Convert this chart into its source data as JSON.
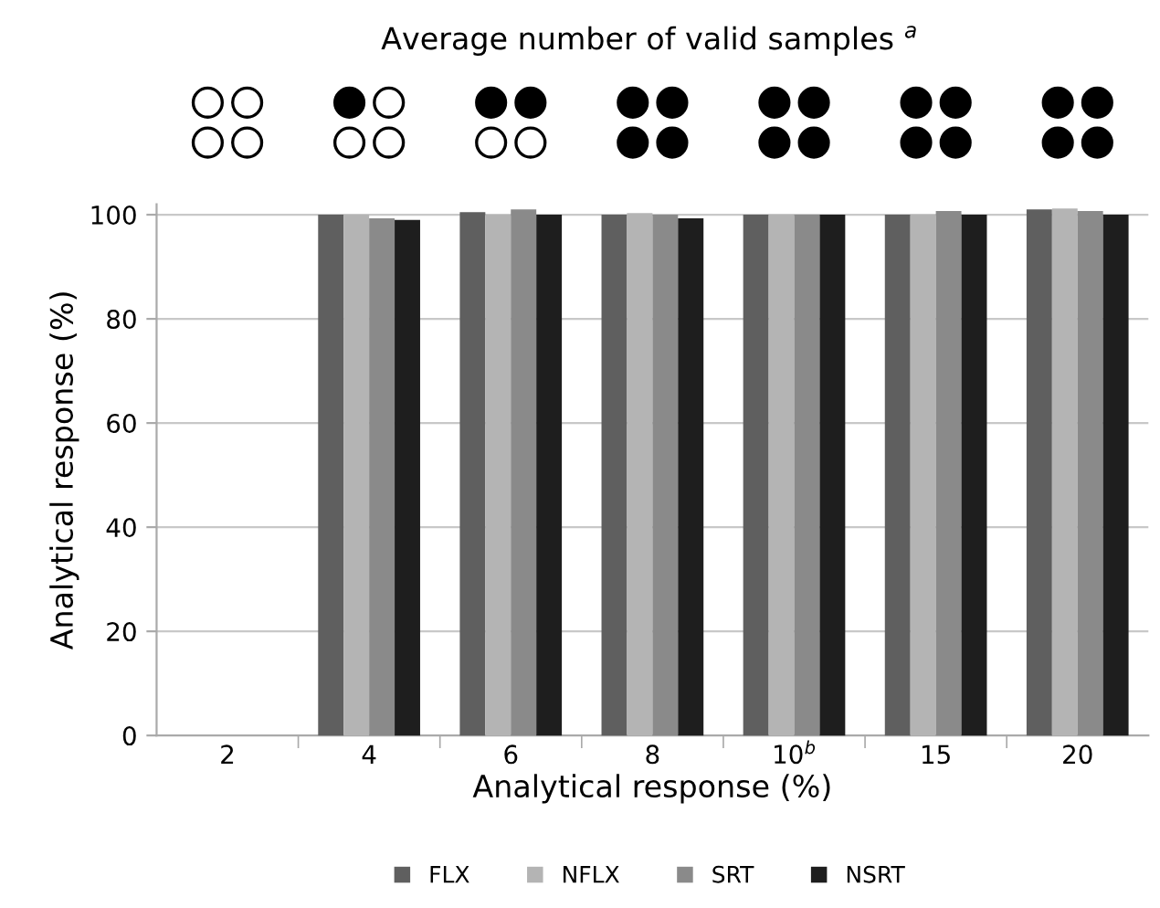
{
  "chart_data": {
    "type": "bar",
    "title": "Average number of valid samples $^{a}$",
    "xlabel": "Analytical response (%)",
    "ylabel": "Analytical response (%)",
    "categories": [
      "2",
      "4",
      "6",
      "8",
      "10$^{b}$",
      "15",
      "20"
    ],
    "series": [
      {
        "name": "FLX",
        "color": "#5f5f5f",
        "values": [
          null,
          100,
          100.5,
          100,
          100,
          100,
          101
        ]
      },
      {
        "name": "NFLX",
        "color": "#b4b4b4",
        "values": [
          null,
          100,
          100,
          100.3,
          100,
          100,
          101.2
        ]
      },
      {
        "name": "SRT",
        "color": "#8a8a8a",
        "values": [
          null,
          99.3,
          101,
          100,
          100,
          100.7,
          100.7
        ]
      },
      {
        "name": "NSRT",
        "color": "#1e1e1e",
        "values": [
          null,
          99,
          100,
          99.3,
          100,
          100,
          100
        ]
      }
    ],
    "ylim": [
      0,
      102
    ],
    "yticks": [
      0,
      20,
      40,
      60,
      80,
      100
    ],
    "grid": "y",
    "legend": "bottom"
  }
}
